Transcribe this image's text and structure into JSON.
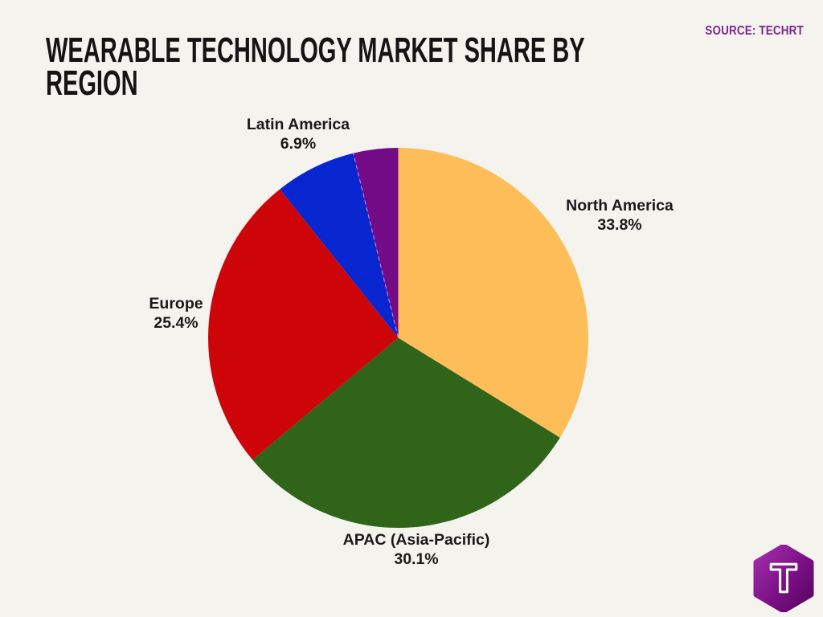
{
  "page": {
    "background_color": "#F4F3EE",
    "title_line1": "WEARABLE TECHNOLOGY MARKET SHARE BY",
    "title_line2": "REGION",
    "source_label": "SOURCE: TECHRT",
    "source_color": "#7C2590"
  },
  "chart_data": {
    "type": "pie",
    "title": "Wearable Technology Market Share by Region",
    "total": 100,
    "start_angle_deg": -90,
    "direction": "clockwise",
    "legend": "none",
    "labels_position": "outside",
    "separator_color": "#DD8CE8",
    "slices": [
      {
        "label": "North America",
        "pct_label": "33.8%",
        "value": 33.8,
        "color": "#FDBD59"
      },
      {
        "label": "APAC (Asia-Pacific)",
        "pct_label": "30.1%",
        "value": 30.1,
        "color": "#306418"
      },
      {
        "label": "Europe",
        "pct_label": "25.4%",
        "value": 25.4,
        "color": "#CD0509"
      },
      {
        "label": "Latin America",
        "pct_label": "6.9%",
        "value": 6.9,
        "color": "#0826D0"
      },
      {
        "label": "",
        "pct_label": "",
        "value": 3.8,
        "color": "#730B86"
      }
    ]
  },
  "logo": {
    "letter": "T",
    "gradient_start": "#A231AC",
    "gradient_end": "#550561"
  }
}
